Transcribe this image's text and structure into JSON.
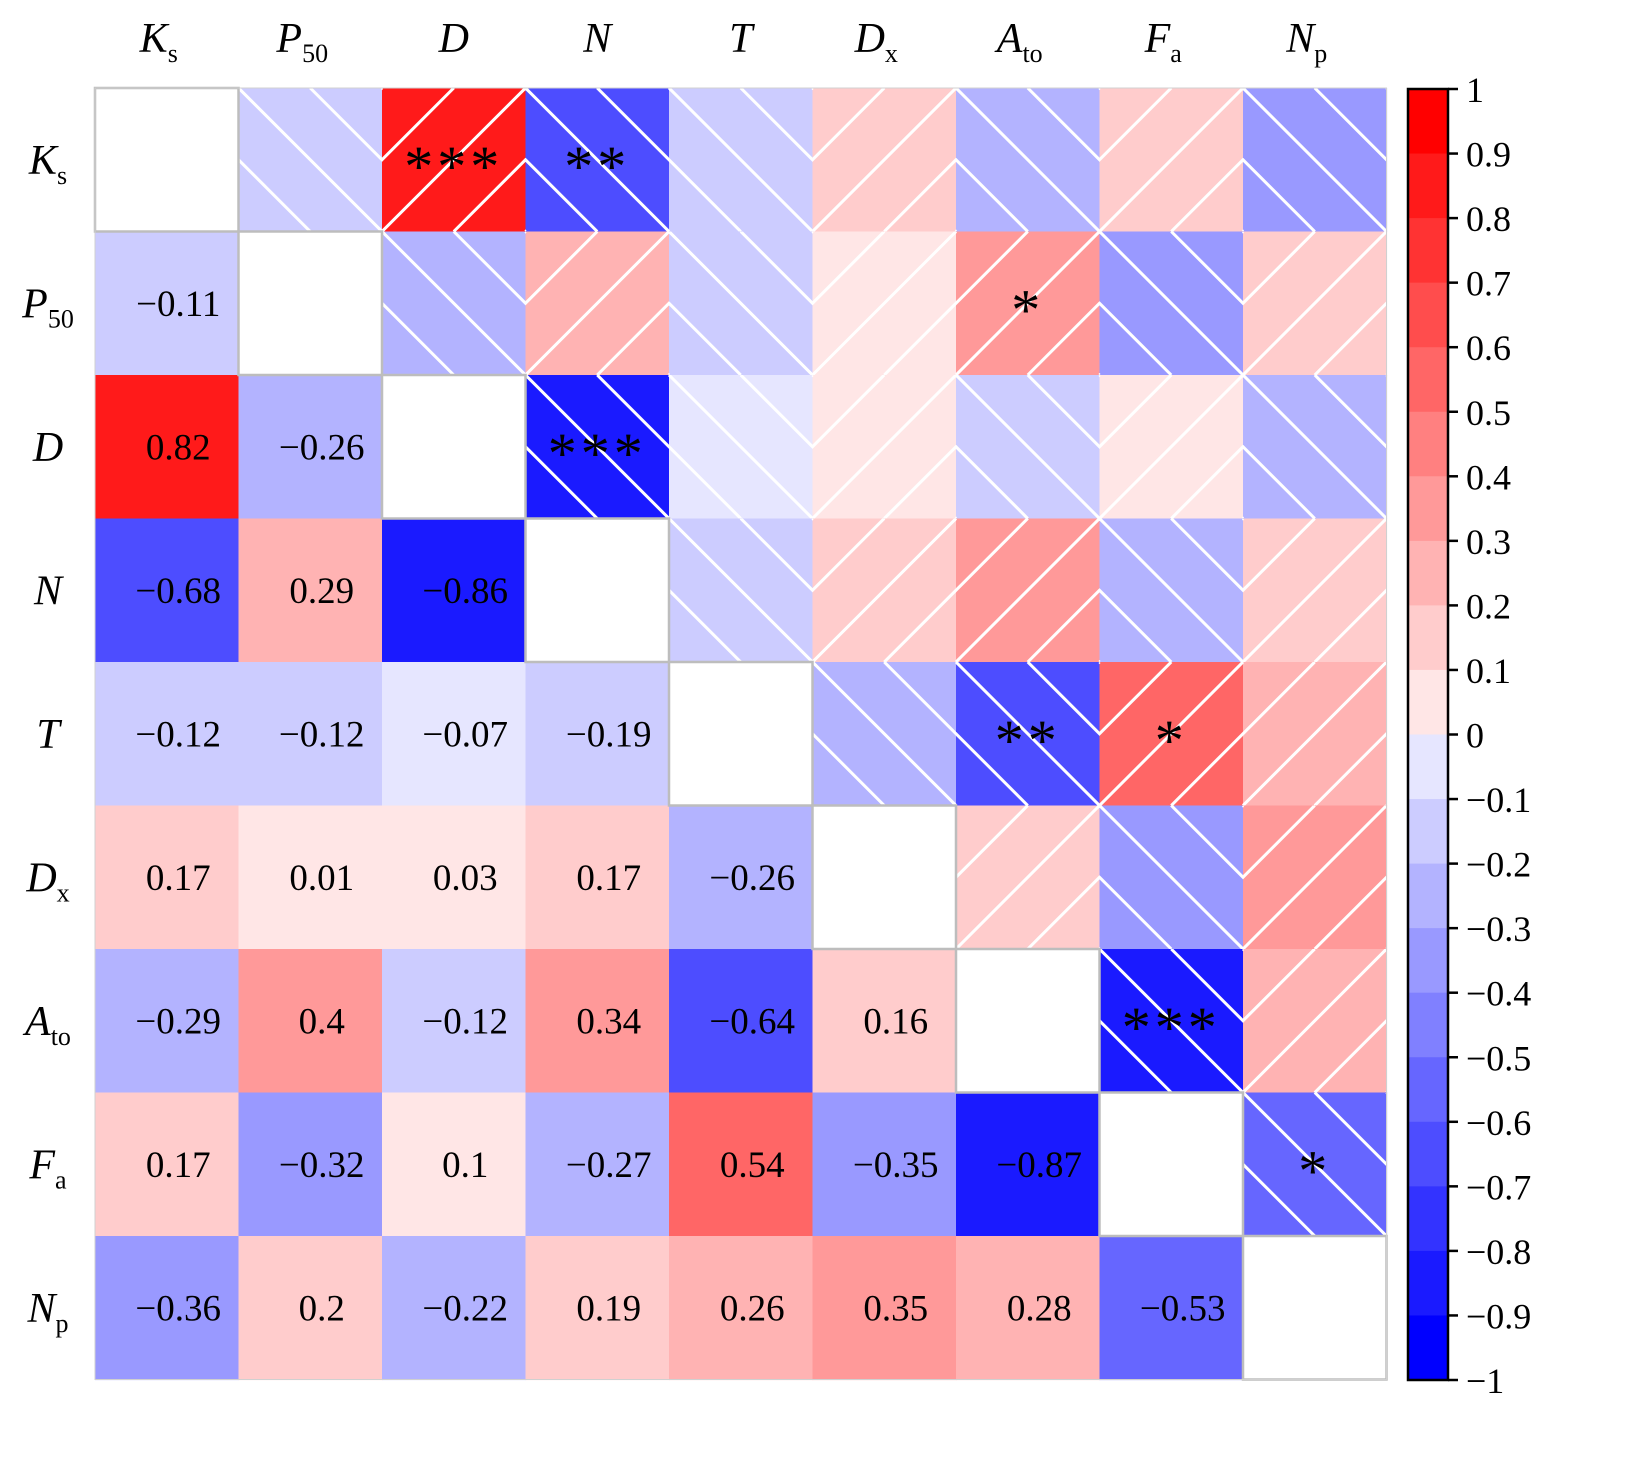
{
  "chart_data": {
    "type": "heatmap",
    "variables": [
      {
        "main": "K",
        "sub": "s"
      },
      {
        "main": "P",
        "sub": "50"
      },
      {
        "main": "D",
        "sub": ""
      },
      {
        "main": "N",
        "sub": ""
      },
      {
        "main": "T",
        "sub": ""
      },
      {
        "main": "D",
        "sub": "x"
      },
      {
        "main": "A",
        "sub": "to"
      },
      {
        "main": "F",
        "sub": "a"
      },
      {
        "main": "N",
        "sub": "p"
      }
    ],
    "correlations": [
      [
        null,
        -0.11,
        0.82,
        -0.68,
        -0.12,
        0.17,
        -0.29,
        0.17,
        -0.36
      ],
      [
        -0.11,
        null,
        -0.26,
        0.29,
        -0.12,
        0.01,
        0.4,
        -0.32,
        0.2
      ],
      [
        0.82,
        -0.26,
        null,
        -0.86,
        -0.07,
        0.03,
        -0.12,
        0.1,
        -0.22
      ],
      [
        -0.68,
        0.29,
        -0.86,
        null,
        -0.19,
        0.17,
        0.34,
        -0.27,
        0.19
      ],
      [
        -0.12,
        -0.12,
        -0.07,
        -0.19,
        null,
        -0.26,
        -0.64,
        0.54,
        0.26
      ],
      [
        0.17,
        0.01,
        0.03,
        0.17,
        -0.26,
        null,
        0.16,
        -0.35,
        0.35
      ],
      [
        -0.29,
        0.4,
        -0.12,
        0.34,
        -0.64,
        0.16,
        null,
        -0.87,
        0.28
      ],
      [
        0.17,
        -0.32,
        0.1,
        -0.27,
        0.54,
        -0.35,
        -0.87,
        null,
        -0.53
      ],
      [
        -0.36,
        0.2,
        -0.22,
        0.19,
        0.26,
        0.35,
        0.28,
        -0.53,
        null
      ]
    ],
    "lower_triangle_labels": [
      [
        "",
        "",
        "",
        "",
        "",
        "",
        "",
        "",
        ""
      ],
      [
        "−0.11",
        "",
        "",
        "",
        "",
        "",
        "",
        "",
        ""
      ],
      [
        "0.82",
        "−0.26",
        "",
        "",
        "",
        "",
        "",
        "",
        ""
      ],
      [
        "−0.68",
        "0.29",
        "−0.86",
        "",
        "",
        "",
        "",
        "",
        ""
      ],
      [
        "−0.12",
        "−0.12",
        "−0.07",
        "−0.19",
        "",
        "",
        "",
        "",
        ""
      ],
      [
        "0.17",
        "0.01",
        "0.03",
        "0.17",
        "−0.26",
        "",
        "",
        "",
        ""
      ],
      [
        "−0.29",
        "0.4",
        "−0.12",
        "0.34",
        "−0.64",
        "0.16",
        "",
        "",
        ""
      ],
      [
        "0.17",
        "−0.32",
        "0.1",
        "−0.27",
        "0.54",
        "−0.35",
        "−0.87",
        "",
        ""
      ],
      [
        "−0.36",
        "0.2",
        "−0.22",
        "0.19",
        "0.26",
        "0.35",
        "0.28",
        "−0.53",
        ""
      ]
    ],
    "significance": [
      [
        "",
        "",
        "***",
        "**",
        "",
        "",
        "",
        "",
        ""
      ],
      [
        "",
        "",
        "",
        "",
        "",
        "",
        "*",
        "",
        ""
      ],
      [
        "",
        "",
        "",
        "***",
        "",
        "",
        "",
        "",
        ""
      ],
      [
        "",
        "",
        "",
        "",
        "",
        "",
        "",
        "",
        ""
      ],
      [
        "",
        "",
        "",
        "",
        "",
        "",
        "**",
        "*",
        ""
      ],
      [
        "",
        "",
        "",
        "",
        "",
        "",
        "",
        "",
        ""
      ],
      [
        "",
        "",
        "",
        "",
        "",
        "",
        "",
        "***",
        ""
      ],
      [
        "",
        "",
        "",
        "",
        "",
        "",
        "",
        "",
        "*"
      ],
      [
        "",
        "",
        "",
        "",
        "",
        "",
        "",
        "",
        ""
      ]
    ],
    "upper_triangle_style": "hatched",
    "color_scale": {
      "min": -1,
      "max": 1,
      "step": 0.1,
      "negative_color": "#0000ff",
      "positive_color": "#ff0000",
      "neutral_color": "#ffffff"
    },
    "colorbar_ticks": [
      "1",
      "0.9",
      "0.8",
      "0.7",
      "0.6",
      "0.5",
      "0.4",
      "0.3",
      "0.2",
      "0.1",
      "0",
      "−0.1",
      "−0.2",
      "−0.3",
      "−0.4",
      "−0.5",
      "−0.6",
      "−0.7",
      "−0.8",
      "−0.9",
      "−1"
    ],
    "legend_placement": "right"
  }
}
